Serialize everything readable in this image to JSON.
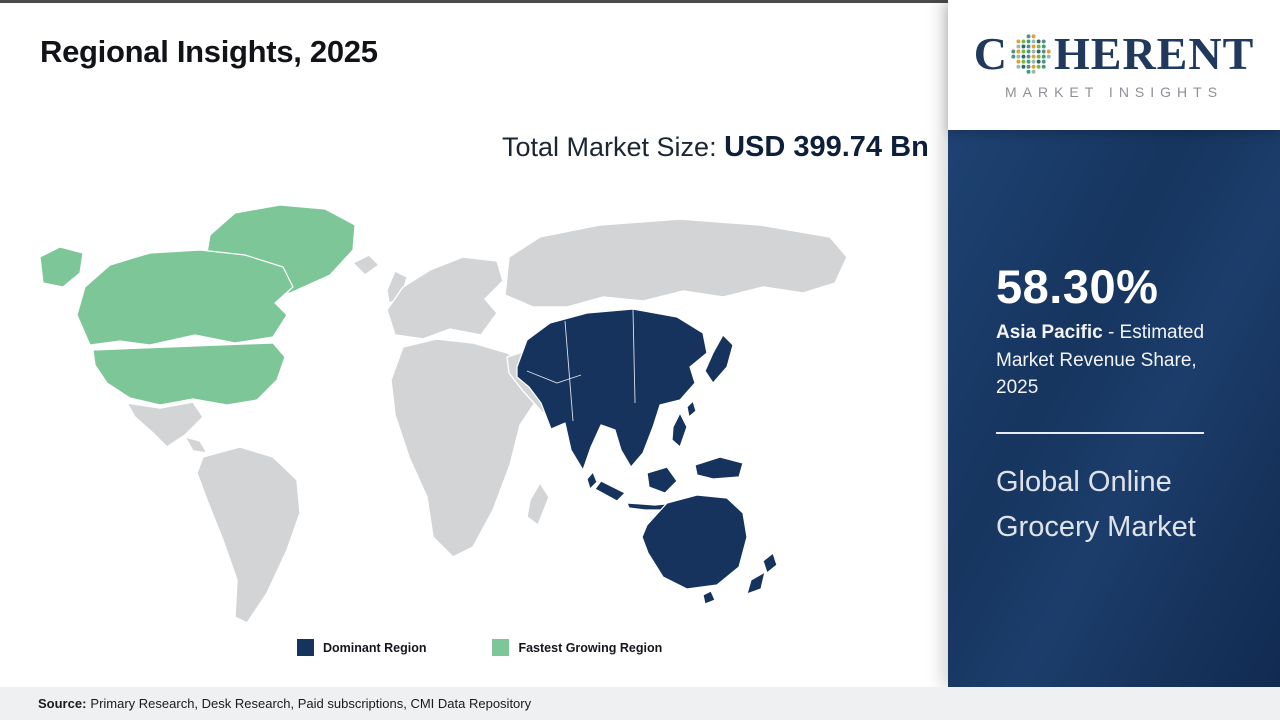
{
  "slide": {
    "title": "Regional Insights, 2025",
    "market_size_label": "Total Market Size: ",
    "market_size_value": "USD 399.74 Bn",
    "source_label": "Source:",
    "source_text": "Primary Research, Desk Research, Paid subscriptions, CMI Data Repository"
  },
  "logo": {
    "name_start": "C",
    "name_end": "HERENT",
    "tagline": "MARKET INSIGHTS",
    "globe_colors": [
      "#3f9e7c",
      "#7ab648",
      "#e09f3a",
      "#5a8e85",
      "#2c6e63",
      "#9bb8ae"
    ]
  },
  "legend": {
    "items": [
      {
        "label": "Dominant Region",
        "color": "#16335E"
      },
      {
        "label": "Fastest Growing Region",
        "color": "#7DC698"
      }
    ]
  },
  "sidebar": {
    "share_value": "58.30%",
    "share_region": "Asia Pacific",
    "share_rest": " - Estimated Market Revenue Share, 2025",
    "market_name": "Global Online Grocery Market",
    "panel_color": "#16355F"
  },
  "chart_data": {
    "type": "choropleth",
    "title": "Regional Insights, 2025",
    "year": 2025,
    "market": "Global Online Grocery Market",
    "total_market_size_usd_bn": 399.74,
    "total_market_size_label": "USD 399.74 Bn",
    "regions": [
      {
        "name": "Asia Pacific",
        "role": "Dominant Region",
        "market_revenue_share_pct": 58.3,
        "map_color": "#16335E"
      },
      {
        "name": "North America",
        "role": "Fastest Growing Region",
        "map_color": "#7DC698"
      },
      {
        "name": "Rest of World",
        "role": "Other",
        "map_color": "#D2D4D6"
      }
    ],
    "legend_entries": [
      "Dominant Region",
      "Fastest Growing Region"
    ],
    "legend_position": "bottom"
  }
}
